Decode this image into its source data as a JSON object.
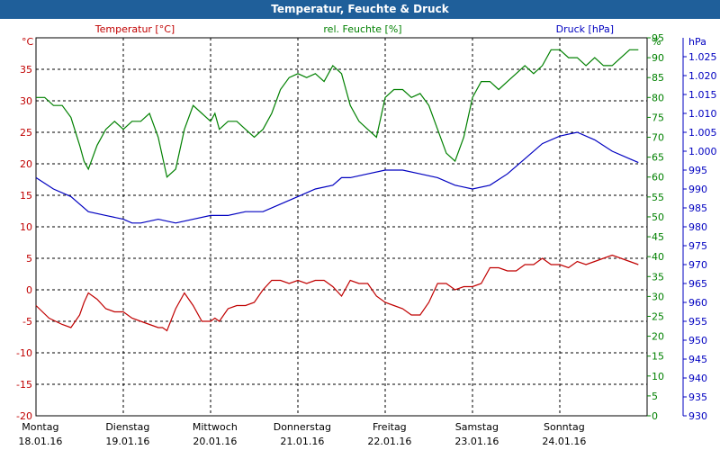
{
  "window": {
    "title": "Temperatur, Feuchte & Druck"
  },
  "chart_data": {
    "type": "line",
    "title": "Temperatur, Feuchte & Druck",
    "grid": true,
    "x_labels": [
      {
        "day": "Montag",
        "date": "18.01.16"
      },
      {
        "day": "Dienstag",
        "date": "19.01.16"
      },
      {
        "day": "Mittwoch",
        "date": "20.01.16"
      },
      {
        "day": "Donnerstag",
        "date": "21.01.16"
      },
      {
        "day": "Freitag",
        "date": "22.01.16"
      },
      {
        "day": "Samstag",
        "date": "23.01.16"
      },
      {
        "day": "Sonntag",
        "date": "24.01.16"
      }
    ],
    "xlim": [
      0,
      7
    ],
    "axes": {
      "temp": {
        "unit": "°C",
        "ylim": [
          -20,
          40
        ],
        "ticks": [
          -20,
          -15,
          -10,
          -5,
          0,
          5,
          10,
          15,
          20,
          25,
          30,
          35
        ],
        "color": "#c00000"
      },
      "hum": {
        "unit": "%",
        "ylim": [
          0,
          95
        ],
        "ticks": [
          0,
          5,
          10,
          15,
          20,
          25,
          30,
          35,
          40,
          45,
          50,
          55,
          60,
          65,
          70,
          75,
          80,
          85,
          90,
          95
        ],
        "color": "#008000"
      },
      "pres": {
        "unit": "hPa",
        "ylim": [
          930,
          1030
        ],
        "ticks": [
          930,
          935,
          940,
          945,
          950,
          955,
          960,
          965,
          970,
          975,
          980,
          985,
          990,
          995,
          1000,
          1005,
          1010,
          1015,
          1020,
          1025
        ],
        "tick_labels": [
          "930",
          "935",
          "940",
          "945",
          "950",
          "955",
          "960",
          "965",
          "970",
          "975",
          "980",
          "985",
          "990",
          "995",
          "1.000",
          "1.005",
          "1.010",
          "1.015",
          "1.020",
          "1.025"
        ],
        "color": "#0000c0"
      }
    },
    "series": [
      {
        "name": "Temperatur [°C]",
        "axis": "temp",
        "color": "#c00000",
        "x": [
          0,
          0.15,
          0.3,
          0.4,
          0.5,
          0.55,
          0.6,
          0.7,
          0.8,
          0.9,
          1.0,
          1.1,
          1.2,
          1.3,
          1.4,
          1.45,
          1.5,
          1.6,
          1.7,
          1.8,
          1.9,
          2.0,
          2.05,
          2.1,
          2.2,
          2.3,
          2.4,
          2.5,
          2.6,
          2.7,
          2.8,
          2.9,
          3.0,
          3.1,
          3.2,
          3.3,
          3.4,
          3.5,
          3.6,
          3.7,
          3.8,
          3.9,
          4.0,
          4.1,
          4.2,
          4.3,
          4.4,
          4.5,
          4.6,
          4.7,
          4.8,
          4.9,
          5.0,
          5.1,
          5.2,
          5.3,
          5.4,
          5.5,
          5.6,
          5.7,
          5.8,
          5.9,
          6.0,
          6.1,
          6.2,
          6.3,
          6.4,
          6.5,
          6.6,
          6.7,
          6.8,
          6.9
        ],
        "y": [
          -2.5,
          -4.5,
          -5.5,
          -6,
          -4,
          -2,
          -0.5,
          -1.5,
          -3,
          -3.5,
          -3.5,
          -4.5,
          -5,
          -5.5,
          -6,
          -6,
          -6.5,
          -3,
          -0.5,
          -2.5,
          -5,
          -5,
          -4.5,
          -5,
          -3,
          -2.5,
          -2.5,
          -2,
          0,
          1.5,
          1.5,
          1,
          1.5,
          1,
          1.5,
          1.5,
          0.5,
          -1,
          1.5,
          1,
          1,
          -1,
          -2,
          -2.5,
          -3,
          -4,
          -4,
          -2,
          1,
          1,
          0,
          0.5,
          0.5,
          1,
          3.5,
          3.5,
          3,
          3,
          4,
          4,
          5,
          4,
          4,
          3.5,
          4.5,
          4,
          4.5,
          5,
          5.5,
          5,
          4.5,
          4
        ]
      },
      {
        "name": "rel. Feuchte [%]",
        "axis": "hum",
        "color": "#008000",
        "x": [
          0,
          0.1,
          0.2,
          0.3,
          0.4,
          0.5,
          0.55,
          0.6,
          0.7,
          0.8,
          0.9,
          1.0,
          1.1,
          1.2,
          1.3,
          1.4,
          1.5,
          1.6,
          1.7,
          1.8,
          1.9,
          2.0,
          2.05,
          2.1,
          2.2,
          2.3,
          2.4,
          2.5,
          2.6,
          2.7,
          2.8,
          2.9,
          3.0,
          3.1,
          3.2,
          3.3,
          3.4,
          3.5,
          3.6,
          3.7,
          3.8,
          3.9,
          4.0,
          4.1,
          4.2,
          4.3,
          4.4,
          4.5,
          4.6,
          4.7,
          4.8,
          4.9,
          5.0,
          5.1,
          5.2,
          5.3,
          5.4,
          5.5,
          5.6,
          5.7,
          5.8,
          5.9,
          6.0,
          6.1,
          6.2,
          6.3,
          6.4,
          6.5,
          6.6,
          6.7,
          6.8,
          6.9
        ],
        "y": [
          80,
          80,
          78,
          78,
          75,
          68,
          64,
          62,
          68,
          72,
          74,
          72,
          74,
          74,
          76,
          70,
          60,
          62,
          72,
          78,
          76,
          74,
          76,
          72,
          74,
          74,
          72,
          70,
          72,
          76,
          82,
          85,
          86,
          85,
          86,
          84,
          88,
          86,
          78,
          74,
          72,
          70,
          80,
          82,
          82,
          80,
          81,
          78,
          72,
          66,
          64,
          70,
          80,
          84,
          84,
          82,
          84,
          86,
          88,
          86,
          88,
          92,
          92,
          90,
          90,
          88,
          90,
          88,
          88,
          90,
          92,
          92
        ]
      },
      {
        "name": "Druck [hPa]",
        "axis": "pres",
        "color": "#0000c0",
        "x": [
          0,
          0.2,
          0.4,
          0.5,
          0.6,
          0.8,
          1.0,
          1.1,
          1.2,
          1.4,
          1.6,
          1.8,
          2.0,
          2.2,
          2.4,
          2.6,
          2.8,
          3.0,
          3.2,
          3.4,
          3.5,
          3.6,
          3.8,
          4.0,
          4.2,
          4.4,
          4.6,
          4.8,
          5.0,
          5.2,
          5.4,
          5.6,
          5.8,
          6.0,
          6.2,
          6.4,
          6.6,
          6.8,
          6.9
        ],
        "y": [
          993,
          990,
          988,
          986,
          984,
          983,
          982,
          981,
          981,
          982,
          981,
          982,
          983,
          983,
          984,
          984,
          986,
          988,
          990,
          991,
          993,
          993,
          994,
          995,
          995,
          994,
          993,
          991,
          990,
          991,
          994,
          998,
          1002,
          1004,
          1005,
          1003,
          1000,
          998,
          997
        ]
      }
    ]
  }
}
